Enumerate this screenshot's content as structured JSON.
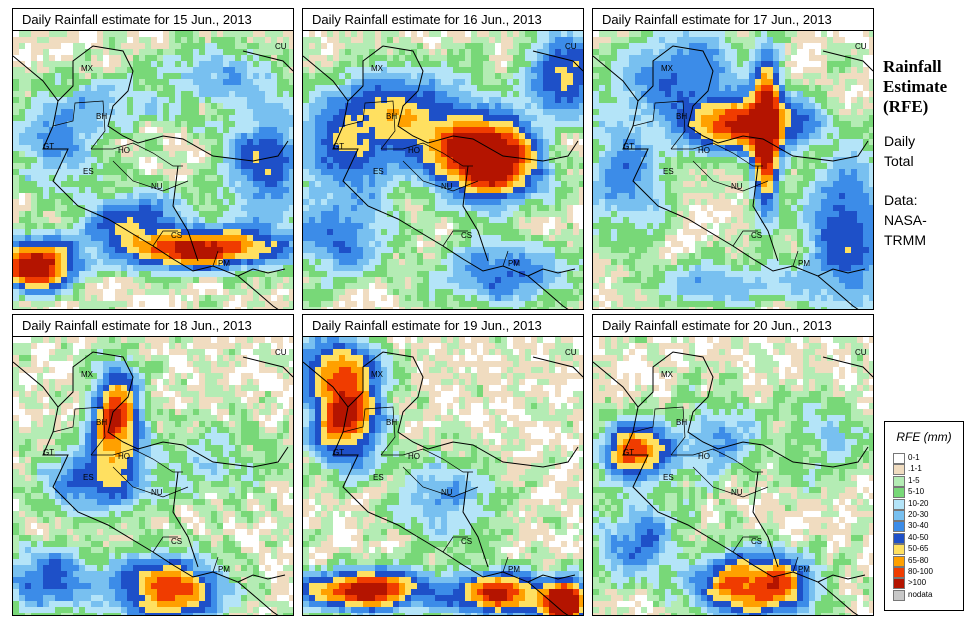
{
  "panels": [
    {
      "title": "Daily Rainfall estimate for  15 Jun., 2013"
    },
    {
      "title": "Daily Rainfall estimate for  16 Jun., 2013"
    },
    {
      "title": "Daily Rainfall estimate for  17 Jun., 2013"
    },
    {
      "title": "Daily Rainfall estimate for  18 Jun., 2013"
    },
    {
      "title": "Daily Rainfall estimate for  19 Jun., 2013"
    },
    {
      "title": "Daily Rainfall estimate for  20 Jun., 2013"
    }
  ],
  "country_labels": [
    "MX",
    "BH",
    "GT",
    "HO",
    "ES",
    "NU",
    "CS",
    "PM",
    "CU"
  ],
  "side": {
    "title_line1": "Rainfall",
    "title_line2": "Estimate",
    "title_line3": "(RFE)",
    "daily": "Daily",
    "total": "Total",
    "data_label": "Data:",
    "source1": "NASA-",
    "source2": "TRMM"
  },
  "legend": {
    "title": "RFE (mm)",
    "bins": [
      {
        "label": "0-1",
        "color": "#ffffff"
      },
      {
        "label": ".1-1",
        "color": "#f0dcc0"
      },
      {
        "label": "1-5",
        "color": "#b4ecb4"
      },
      {
        "label": "5-10",
        "color": "#78d878"
      },
      {
        "label": "10-20",
        "color": "#b4e4f8"
      },
      {
        "label": "20-30",
        "color": "#78c0f0"
      },
      {
        "label": "30-40",
        "color": "#3c8ce8"
      },
      {
        "label": "40-50",
        "color": "#1e50c8"
      },
      {
        "label": "50-65",
        "color": "#ffe060"
      },
      {
        "label": "65-80",
        "color": "#ffa000"
      },
      {
        "label": "80-100",
        "color": "#f03c00"
      },
      {
        "label": ">100",
        "color": "#b41400"
      },
      {
        "label": "nodata",
        "color": "#c8c8c8"
      }
    ]
  }
}
